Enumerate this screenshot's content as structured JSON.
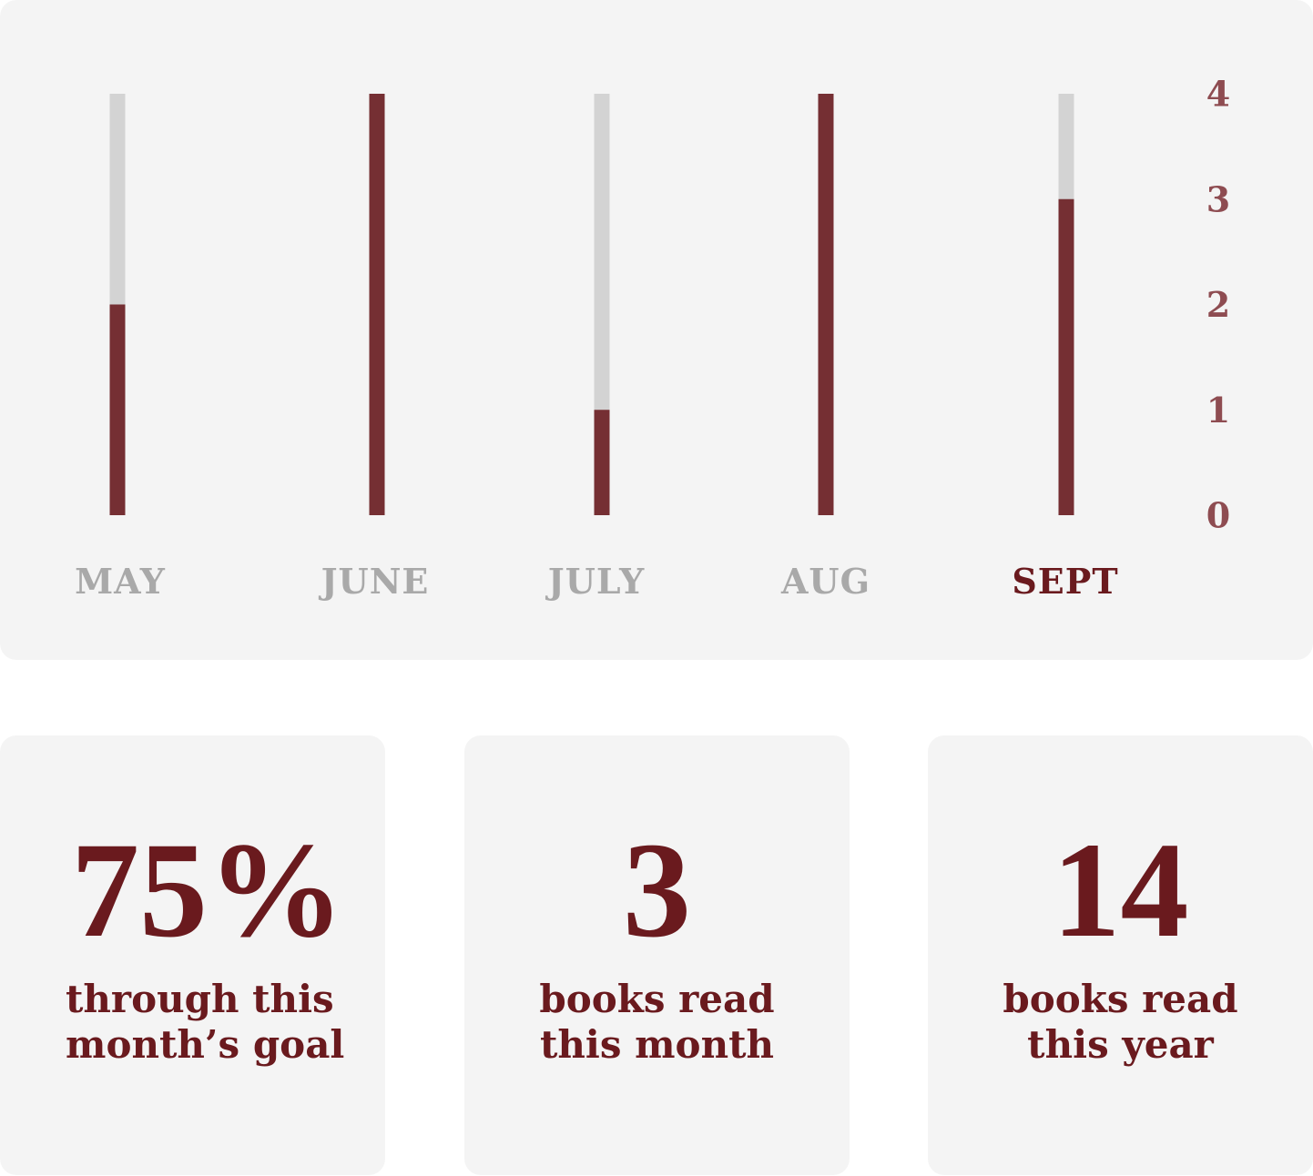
{
  "colors": {
    "panel_bg": "#f4f4f4",
    "bar_fill": "#752f33",
    "bar_track": "#d3d3d3",
    "axis_tick": "#8e4c51",
    "month_inactive": "#a9a9a9",
    "month_active": "#6a1a1e",
    "stat_text": "#6a1a1e"
  },
  "chart_data": {
    "type": "bar",
    "categories": [
      "MAY",
      "JUNE",
      "JULY",
      "AUG",
      "SEPT"
    ],
    "values": [
      2,
      4,
      1,
      4,
      3
    ],
    "goal": 4,
    "ylim": [
      0,
      4
    ],
    "yticks": [
      "0",
      "1",
      "2",
      "3",
      "4"
    ],
    "y_axis_position": "right",
    "active_category": "SEPT",
    "title": "",
    "xlabel": "",
    "ylabel": ""
  },
  "stats": {
    "goal": {
      "value": "75%",
      "line1": "through this",
      "line2": "month’s goal"
    },
    "month": {
      "value": "3",
      "line1": "books read",
      "line2": "this month"
    },
    "year": {
      "value": "14",
      "line1": "books read",
      "line2": "this year"
    }
  }
}
